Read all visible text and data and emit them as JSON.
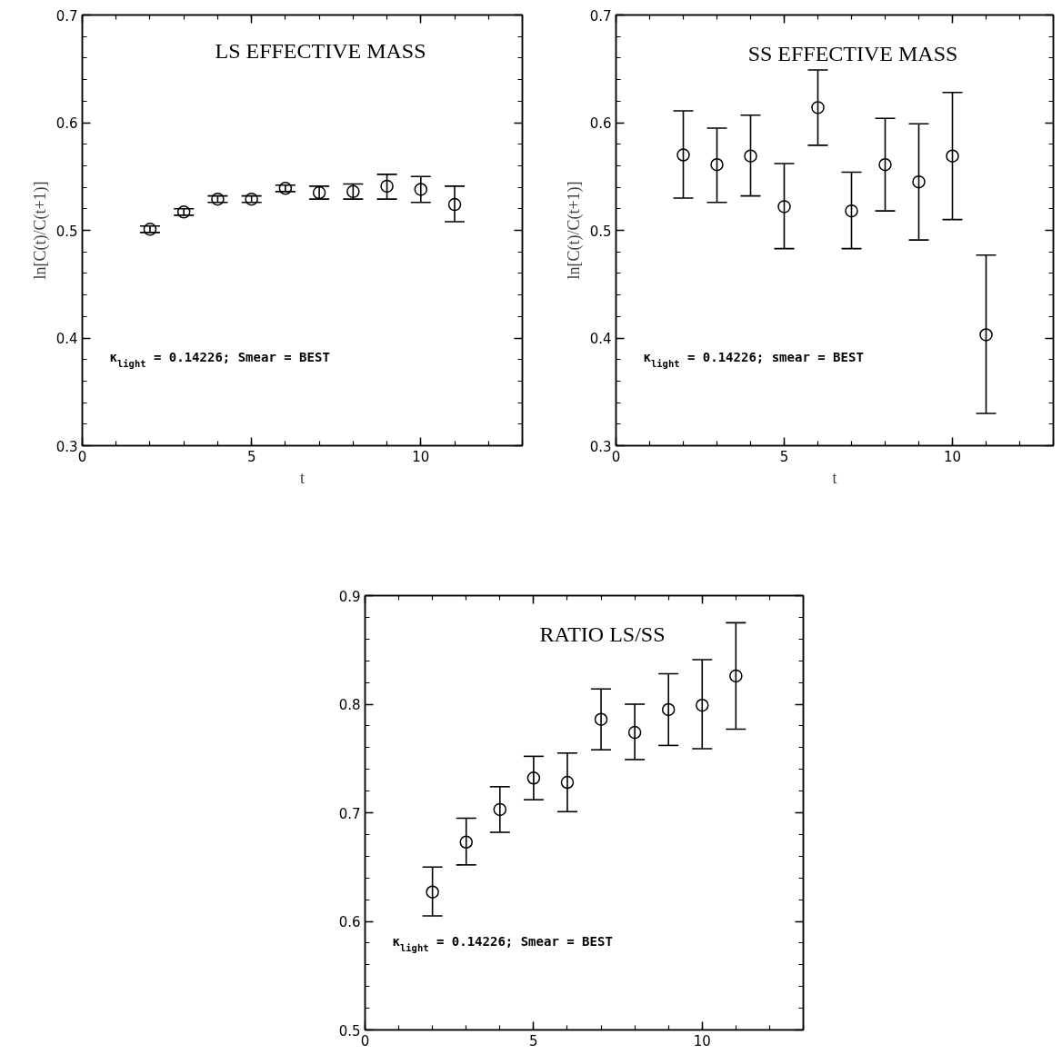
{
  "chart_data": [
    {
      "type": "scatter",
      "title": "LS EFFECTIVE MASS",
      "xlabel": "t",
      "ylabel": "ln[C(t)/C(t+1)]",
      "annotations": [
        "κ$_{light}$ = 0.14226; Smear = BEST"
      ],
      "marker": "circle",
      "color": "#000000",
      "x": [
        2,
        3,
        4,
        5,
        6,
        7,
        8,
        9,
        10,
        11
      ],
      "values": [
        0.501,
        0.517,
        0.529,
        0.529,
        0.539,
        0.535,
        0.536,
        0.541,
        0.538,
        0.524
      ],
      "errors": [
        0.003,
        0.003,
        0.003,
        0.003,
        0.003,
        0.006,
        0.007,
        [
          0.529,
          0.552
        ],
        [
          0.526,
          0.55
        ],
        [
          0.508,
          0.541
        ]
      ],
      "xlim": [
        0,
        13
      ],
      "ylim": [
        0.3,
        0.7
      ],
      "xticks": [
        0,
        5,
        10
      ],
      "yticks": [
        0.3,
        0.4,
        0.5,
        0.6,
        0.7
      ]
    },
    {
      "type": "scatter",
      "title": "SS EFFECTIVE MASS",
      "xlabel": "t",
      "ylabel": "ln[C(t)/C(t+1)]",
      "annotations": [
        "κ$_{light}$ = 0.14226; smear = BEST"
      ],
      "marker": "circle",
      "color": "#000000",
      "x": [
        2,
        3,
        4,
        5,
        6,
        7,
        8,
        9,
        10,
        11
      ],
      "values": [
        0.57,
        0.561,
        0.569,
        0.522,
        0.614,
        0.518,
        0.561,
        0.545,
        0.569,
        0.403
      ],
      "errors": [
        [
          0.53,
          0.611
        ],
        [
          0.526,
          0.595
        ],
        [
          0.532,
          0.607
        ],
        [
          0.483,
          0.562
        ],
        [
          0.579,
          0.649
        ],
        [
          0.483,
          0.554
        ],
        [
          0.518,
          0.604
        ],
        [
          0.491,
          0.599
        ],
        [
          0.51,
          0.628
        ],
        [
          0.33,
          0.477
        ]
      ],
      "xlim": [
        0,
        13
      ],
      "ylim": [
        0.3,
        0.7
      ],
      "xticks": [
        0,
        5,
        10
      ],
      "yticks": [
        0.3,
        0.4,
        0.5,
        0.6,
        0.7
      ]
    },
    {
      "type": "scatter",
      "title": "RATIO LS/SS",
      "annotations": [
        "κ$_{light}$ = 0.14226; Smear = BEST"
      ],
      "marker": "circle",
      "color": "#000000",
      "x": [
        2,
        3,
        4,
        5,
        6,
        7,
        8,
        9,
        10,
        11
      ],
      "values": [
        0.627,
        0.673,
        0.703,
        0.732,
        0.728,
        0.786,
        0.774,
        0.795,
        0.799,
        0.826
      ],
      "errors": [
        [
          0.605,
          0.65
        ],
        [
          0.652,
          0.695
        ],
        [
          0.682,
          0.724
        ],
        [
          0.712,
          0.752
        ],
        [
          0.701,
          0.755
        ],
        [
          0.758,
          0.814
        ],
        [
          0.749,
          0.8
        ],
        [
          0.762,
          0.828
        ],
        [
          0.759,
          0.841
        ],
        [
          0.777,
          0.875
        ]
      ],
      "xlim": [
        0,
        13
      ],
      "ylim": [
        0.5,
        0.9
      ],
      "xticks": [
        0,
        5,
        10
      ],
      "yticks": [
        0.5,
        0.6,
        0.7,
        0.8,
        0.9
      ]
    }
  ]
}
